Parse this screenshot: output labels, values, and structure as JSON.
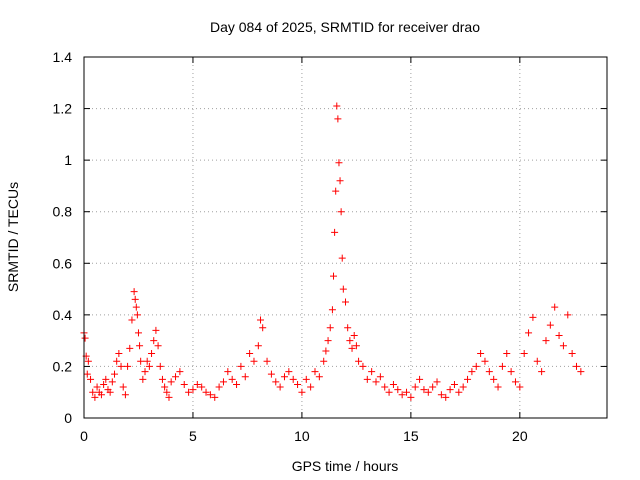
{
  "chart_data": {
    "type": "scatter",
    "title": "Day 084 of 2025, SRMTID for receiver drao",
    "xlabel": "GPS time / hours",
    "ylabel": "SRMTID / TECUs",
    "xlim": [
      0,
      24
    ],
    "ylim": [
      0,
      1.4
    ],
    "xticks": [
      0,
      5,
      10,
      15,
      20
    ],
    "xtick_labels": [
      "0",
      "5",
      "10",
      "15",
      "20"
    ],
    "yticks": [
      0,
      0.2,
      0.4,
      0.6,
      0.8,
      1.0,
      1.2,
      1.4
    ],
    "ytick_labels": [
      "0",
      "0.2",
      "0.4",
      "0.6",
      "0.8",
      "1",
      "1.2",
      "1.4"
    ],
    "grid": true,
    "marker": "+",
    "marker_color": "#ff0000",
    "series": [
      {
        "name": "SRMTID",
        "x": [
          0.0,
          0.05,
          0.1,
          0.15,
          0.2,
          0.3,
          0.4,
          0.5,
          0.6,
          0.7,
          0.8,
          0.9,
          1.0,
          1.1,
          1.2,
          1.3,
          1.4,
          1.5,
          1.6,
          1.7,
          1.8,
          1.9,
          2.0,
          2.1,
          2.2,
          2.3,
          2.35,
          2.4,
          2.45,
          2.5,
          2.55,
          2.6,
          2.7,
          2.8,
          2.9,
          3.0,
          3.1,
          3.2,
          3.3,
          3.4,
          3.5,
          3.6,
          3.7,
          3.8,
          3.9,
          4.0,
          4.2,
          4.4,
          4.6,
          4.8,
          5.0,
          5.2,
          5.4,
          5.6,
          5.8,
          6.0,
          6.2,
          6.4,
          6.6,
          6.8,
          7.0,
          7.2,
          7.4,
          7.6,
          7.8,
          8.0,
          8.1,
          8.2,
          8.4,
          8.6,
          8.8,
          9.0,
          9.2,
          9.4,
          9.6,
          9.8,
          10.0,
          10.2,
          10.4,
          10.6,
          10.8,
          11.0,
          11.1,
          11.2,
          11.3,
          11.4,
          11.45,
          11.5,
          11.55,
          11.6,
          11.65,
          11.7,
          11.75,
          11.8,
          11.85,
          11.9,
          12.0,
          12.1,
          12.2,
          12.3,
          12.4,
          12.5,
          12.6,
          12.8,
          13.0,
          13.2,
          13.4,
          13.6,
          13.8,
          14.0,
          14.2,
          14.4,
          14.6,
          14.8,
          15.0,
          15.2,
          15.4,
          15.6,
          15.8,
          16.0,
          16.2,
          16.4,
          16.6,
          16.8,
          17.0,
          17.2,
          17.4,
          17.6,
          17.8,
          18.0,
          18.2,
          18.4,
          18.6,
          18.8,
          19.0,
          19.2,
          19.4,
          19.6,
          19.8,
          20.0,
          20.2,
          20.4,
          20.6,
          20.8,
          21.0,
          21.2,
          21.4,
          21.6,
          21.8,
          22.0,
          22.2,
          22.4,
          22.6,
          22.8
        ],
        "y": [
          0.33,
          0.31,
          0.24,
          0.17,
          0.22,
          0.15,
          0.1,
          0.08,
          0.12,
          0.1,
          0.09,
          0.13,
          0.15,
          0.11,
          0.1,
          0.14,
          0.17,
          0.22,
          0.25,
          0.2,
          0.12,
          0.09,
          0.2,
          0.27,
          0.38,
          0.49,
          0.46,
          0.43,
          0.4,
          0.33,
          0.28,
          0.22,
          0.15,
          0.18,
          0.22,
          0.2,
          0.25,
          0.3,
          0.34,
          0.28,
          0.2,
          0.15,
          0.12,
          0.1,
          0.08,
          0.14,
          0.16,
          0.18,
          0.13,
          0.1,
          0.11,
          0.13,
          0.12,
          0.1,
          0.09,
          0.08,
          0.12,
          0.14,
          0.18,
          0.15,
          0.13,
          0.2,
          0.16,
          0.25,
          0.22,
          0.28,
          0.38,
          0.35,
          0.22,
          0.17,
          0.14,
          0.12,
          0.16,
          0.18,
          0.15,
          0.13,
          0.1,
          0.15,
          0.12,
          0.18,
          0.16,
          0.22,
          0.26,
          0.3,
          0.35,
          0.42,
          0.55,
          0.72,
          0.88,
          1.21,
          1.16,
          0.99,
          0.92,
          0.8,
          0.62,
          0.5,
          0.45,
          0.35,
          0.3,
          0.27,
          0.32,
          0.28,
          0.22,
          0.2,
          0.15,
          0.18,
          0.14,
          0.16,
          0.12,
          0.1,
          0.13,
          0.11,
          0.09,
          0.1,
          0.08,
          0.12,
          0.15,
          0.11,
          0.1,
          0.12,
          0.14,
          0.09,
          0.08,
          0.11,
          0.13,
          0.1,
          0.12,
          0.15,
          0.18,
          0.2,
          0.25,
          0.22,
          0.18,
          0.15,
          0.12,
          0.2,
          0.25,
          0.18,
          0.14,
          0.12,
          0.25,
          0.33,
          0.39,
          0.22,
          0.18,
          0.3,
          0.36,
          0.43,
          0.32,
          0.28,
          0.4,
          0.25,
          0.2,
          0.18
        ]
      }
    ]
  }
}
